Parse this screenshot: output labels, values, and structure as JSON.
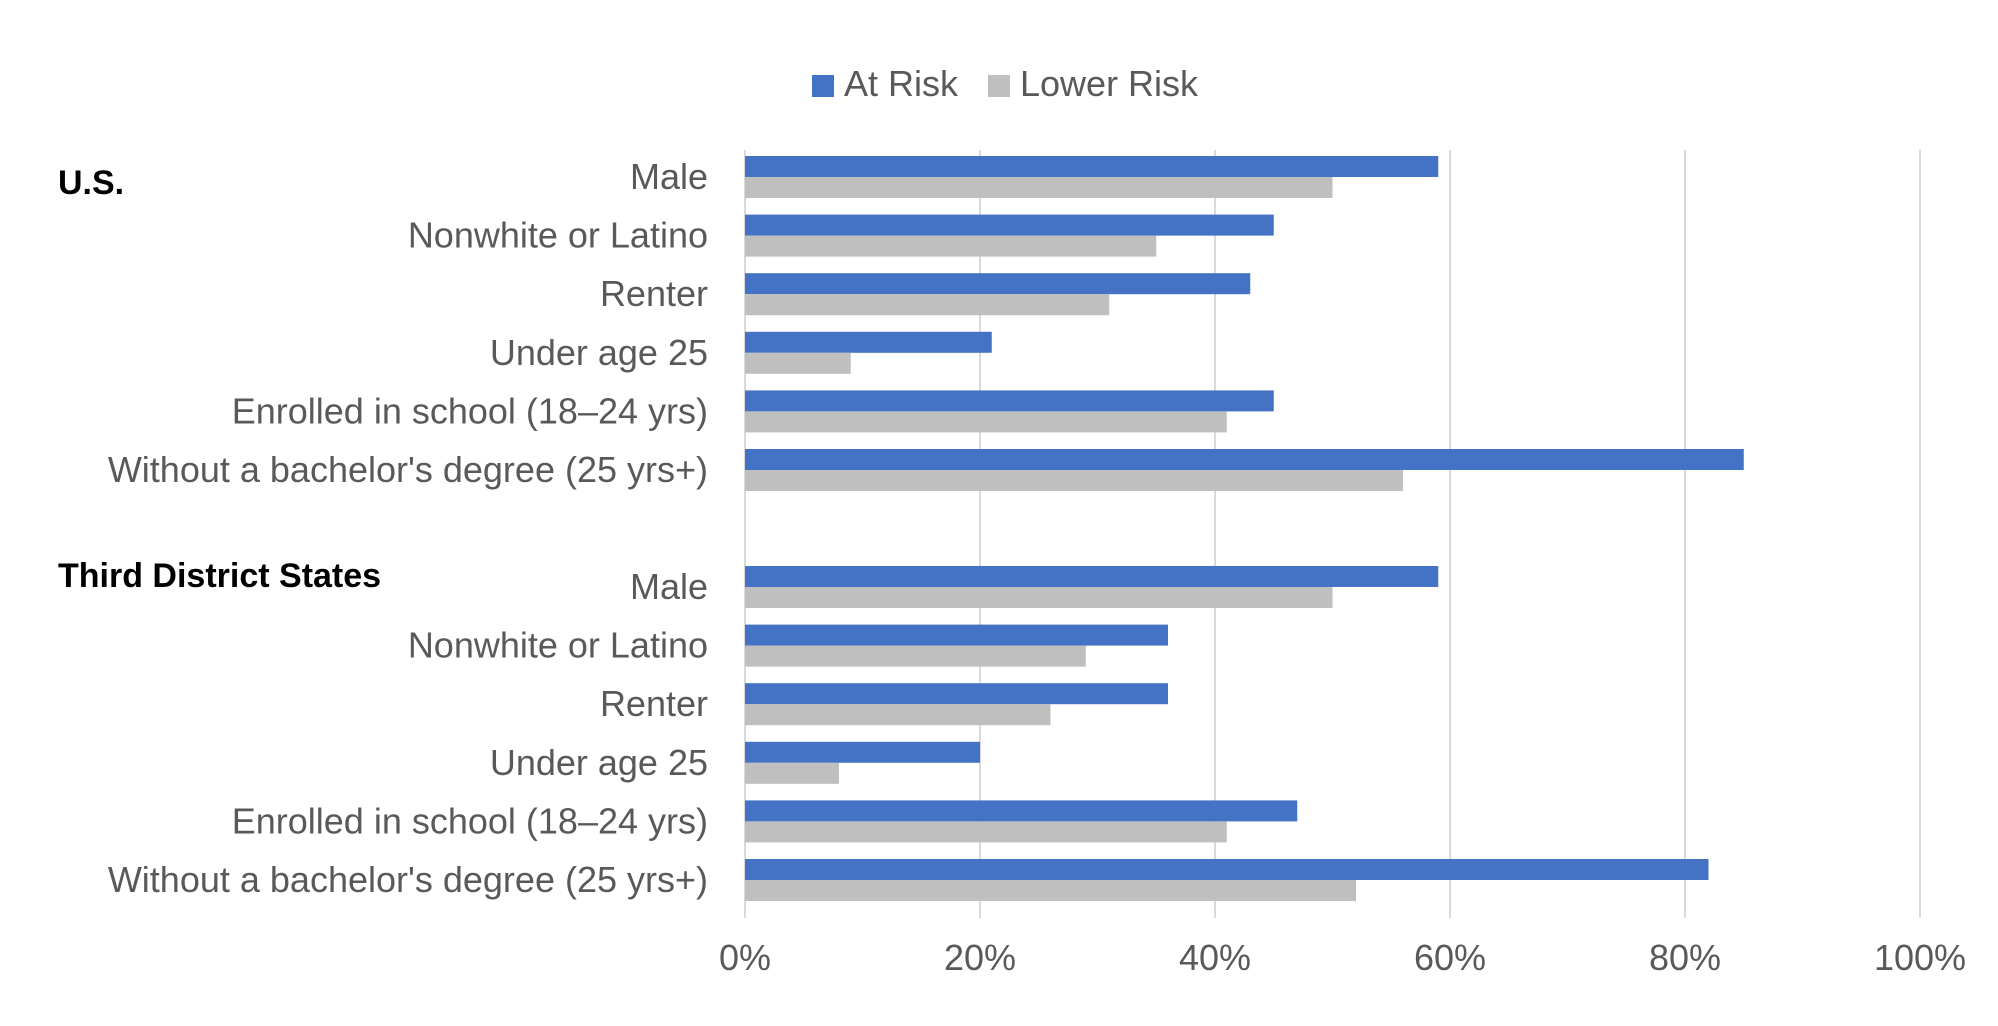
{
  "chart_data": {
    "type": "bar",
    "orientation": "horizontal",
    "title": "",
    "xlabel": "",
    "ylabel": "",
    "xlim": [
      0,
      100
    ],
    "x_ticks": [
      "0%",
      "20%",
      "40%",
      "60%",
      "80%",
      "100%"
    ],
    "grid": true,
    "legend_position": "top-center",
    "series": [
      {
        "name": "At Risk",
        "color": "#4472C4"
      },
      {
        "name": "Lower Risk",
        "color": "#BFBFBF"
      }
    ],
    "groups": [
      {
        "name": "U.S.",
        "categories": [
          {
            "label": "Male",
            "values": [
              59,
              50
            ]
          },
          {
            "label": "Nonwhite or Latino",
            "values": [
              45,
              35
            ]
          },
          {
            "label": "Renter",
            "values": [
              43,
              31
            ]
          },
          {
            "label": "Under age 25",
            "values": [
              21,
              9
            ]
          },
          {
            "label": "Enrolled in school (18–24 yrs)",
            "values": [
              45,
              41
            ]
          },
          {
            "label": "Without a bachelor's degree (25 yrs+)",
            "values": [
              85,
              56
            ]
          }
        ]
      },
      {
        "name": "Third District States",
        "categories": [
          {
            "label": "Male",
            "values": [
              59,
              50
            ]
          },
          {
            "label": "Nonwhite or Latino",
            "values": [
              36,
              29
            ]
          },
          {
            "label": "Renter",
            "values": [
              36,
              26
            ]
          },
          {
            "label": "Under age 25",
            "values": [
              20,
              8
            ]
          },
          {
            "label": "Enrolled in school (18–24 yrs)",
            "values": [
              47,
              41
            ]
          },
          {
            "label": "Without a bachelor's degree (25 yrs+)",
            "values": [
              82,
              52
            ]
          }
        ]
      }
    ]
  }
}
